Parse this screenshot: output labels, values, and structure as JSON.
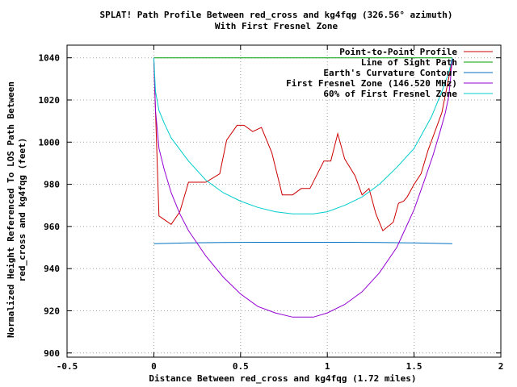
{
  "chart_data": {
    "type": "line",
    "title_line1": "SPLAT! Path Profile Between red_cross and kg4fqg (326.56° azimuth)",
    "title_line2": "With First Fresnel Zone",
    "xlabel": "Distance Between red_cross and kg4fqg (1.72 miles)",
    "ylabel_line1": "Normalized Height Referenced To LOS Path Between",
    "ylabel_line2": "red_cross and kg4fqg (feet)",
    "xlim": [
      -0.5,
      2
    ],
    "ylim": [
      898,
      1046
    ],
    "xticks": [
      -0.5,
      0,
      0.5,
      1,
      1.5,
      2
    ],
    "xtick_labels": [
      "-0.5",
      "0",
      "0.5",
      "1",
      "1.5",
      "2"
    ],
    "yticks": [
      900,
      920,
      940,
      960,
      980,
      1000,
      1020,
      1040
    ],
    "ytick_labels": [
      "900",
      "920",
      "940",
      "960",
      "980",
      "1000",
      "1020",
      "1040"
    ],
    "grid": true,
    "legend_position": "top-right",
    "series": [
      {
        "name": "Point-to-Point Profile",
        "color": "#cc0000",
        "x": [
          0,
          0.03,
          0.1,
          0.15,
          0.2,
          0.3,
          0.38,
          0.42,
          0.48,
          0.52,
          0.57,
          0.62,
          0.68,
          0.74,
          0.8,
          0.85,
          0.9,
          0.98,
          1.02,
          1.06,
          1.1,
          1.16,
          1.2,
          1.24,
          1.28,
          1.32,
          1.38,
          1.41,
          1.44,
          1.46,
          1.5,
          1.54,
          1.58,
          1.62,
          1.66,
          1.72
        ],
        "y": [
          1039,
          965,
          961,
          967,
          981,
          981,
          985,
          1001,
          1008,
          1008,
          1005,
          1007,
          995,
          975,
          975,
          978,
          978,
          991,
          991,
          1004,
          992,
          984,
          975,
          978,
          966,
          958,
          962,
          971,
          972,
          974,
          980,
          985,
          996,
          1005,
          1014,
          1039
        ]
      },
      {
        "name": "Line of Sight Path",
        "color": "#00a000",
        "x": [
          0,
          1.72
        ],
        "y": [
          1040,
          1040
        ]
      },
      {
        "name": "Earth's Curvature Contour",
        "color": "#0070c0",
        "x": [
          0,
          0.2,
          0.4,
          0.6,
          0.86,
          1.1,
          1.3,
          1.5,
          1.72
        ],
        "y": [
          951.8,
          952.2,
          952.4,
          952.5,
          952.5,
          952.5,
          952.4,
          952.2,
          951.8
        ]
      },
      {
        "name": "First Fresnel Zone (146.520 MHz)",
        "color": "#9400d3",
        "x": [
          0,
          0.01,
          0.03,
          0.06,
          0.1,
          0.15,
          0.2,
          0.3,
          0.4,
          0.5,
          0.6,
          0.7,
          0.8,
          0.86,
          0.92,
          1.0,
          1.1,
          1.2,
          1.3,
          1.4,
          1.5,
          1.56,
          1.61,
          1.65,
          1.68,
          1.7,
          1.71,
          1.72
        ],
        "y": [
          1040,
          1015,
          997,
          987,
          976,
          966,
          958,
          946,
          936,
          928,
          922,
          919,
          917,
          917,
          917,
          919,
          923,
          929,
          938,
          950,
          968,
          982,
          994,
          1005,
          1014,
          1022,
          1030,
          1040
        ]
      },
      {
        "name": "60% of First Fresnel Zone",
        "color": "#00cccc",
        "x": [
          0,
          0.01,
          0.03,
          0.06,
          0.1,
          0.2,
          0.3,
          0.4,
          0.5,
          0.6,
          0.7,
          0.8,
          0.86,
          0.92,
          1.0,
          1.1,
          1.2,
          1.3,
          1.4,
          1.5,
          1.6,
          1.66,
          1.7,
          1.72
        ],
        "y": [
          1040,
          1024,
          1015,
          1009,
          1002,
          991,
          982,
          976,
          972,
          969,
          967,
          966,
          966,
          966,
          967,
          970,
          974,
          980,
          988,
          997,
          1012,
          1024,
          1033,
          1040
        ]
      }
    ]
  }
}
